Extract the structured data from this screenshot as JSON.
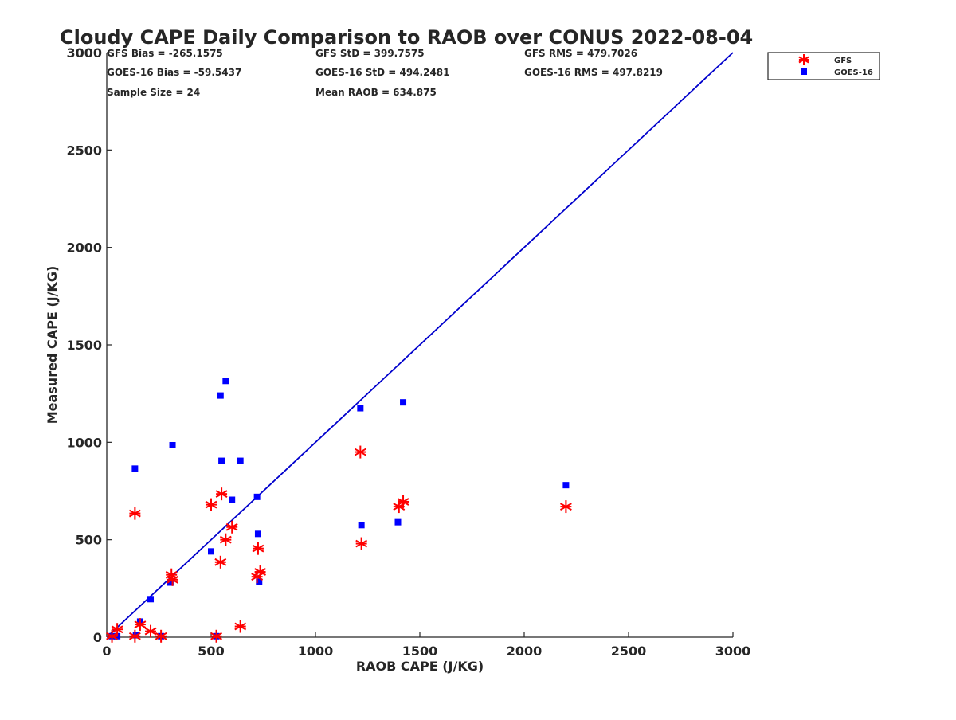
{
  "chart_data": {
    "type": "scatter",
    "title": "Cloudy CAPE Daily Comparison to RAOB over CONUS 2022-08-04",
    "xlabel": "RAOB CAPE (J/KG)",
    "ylabel": "Measured CAPE (J/KG)",
    "xlim": [
      0,
      3000
    ],
    "ylim": [
      0,
      3000
    ],
    "xticks": [
      "0",
      "500",
      "1000",
      "1500",
      "2000",
      "2500",
      "3000"
    ],
    "yticks": [
      "0",
      "500",
      "1000",
      "1500",
      "2000",
      "2500",
      "3000"
    ],
    "grid": false,
    "legend_position": "top-right",
    "stats": [
      "GFS Bias = -265.1575",
      "GFS StD = 399.7575",
      "GFS RMS = 479.7026",
      "GOES-16 Bias = -59.5437",
      "GOES-16 StD = 494.2481",
      "GOES-16 RMS = 497.8219",
      "Sample Size = 24",
      "Mean RAOB = 634.875"
    ],
    "reference_line": {
      "x": [
        0,
        3000
      ],
      "y": [
        0,
        3000
      ],
      "color": "#0000cc"
    },
    "series": [
      {
        "name": "GFS",
        "marker": "asterisk",
        "color": "#ff0000",
        "points": [
          [
            25,
            5
          ],
          [
            50,
            40
          ],
          [
            135,
            5
          ],
          [
            135,
            635
          ],
          [
            160,
            65
          ],
          [
            210,
            30
          ],
          [
            260,
            5
          ],
          [
            310,
            320
          ],
          [
            315,
            295
          ],
          [
            500,
            680
          ],
          [
            525,
            5
          ],
          [
            545,
            385
          ],
          [
            550,
            735
          ],
          [
            570,
            500
          ],
          [
            600,
            565
          ],
          [
            640,
            55
          ],
          [
            720,
            310
          ],
          [
            725,
            455
          ],
          [
            735,
            335
          ],
          [
            1215,
            950
          ],
          [
            1220,
            480
          ],
          [
            1400,
            670
          ],
          [
            1420,
            695
          ],
          [
            2200,
            670
          ]
        ]
      },
      {
        "name": "GOES-16",
        "marker": "square",
        "color": "#0000ff",
        "points": [
          [
            25,
            5
          ],
          [
            50,
            5
          ],
          [
            135,
            865
          ],
          [
            140,
            10
          ],
          [
            160,
            80
          ],
          [
            210,
            195
          ],
          [
            260,
            5
          ],
          [
            305,
            280
          ],
          [
            315,
            985
          ],
          [
            500,
            440
          ],
          [
            525,
            5
          ],
          [
            545,
            1240
          ],
          [
            550,
            905
          ],
          [
            570,
            1315
          ],
          [
            600,
            705
          ],
          [
            640,
            905
          ],
          [
            720,
            720
          ],
          [
            725,
            530
          ],
          [
            730,
            285
          ],
          [
            1215,
            1175
          ],
          [
            1220,
            575
          ],
          [
            1395,
            590
          ],
          [
            1420,
            1205
          ],
          [
            2200,
            780
          ]
        ]
      }
    ]
  }
}
